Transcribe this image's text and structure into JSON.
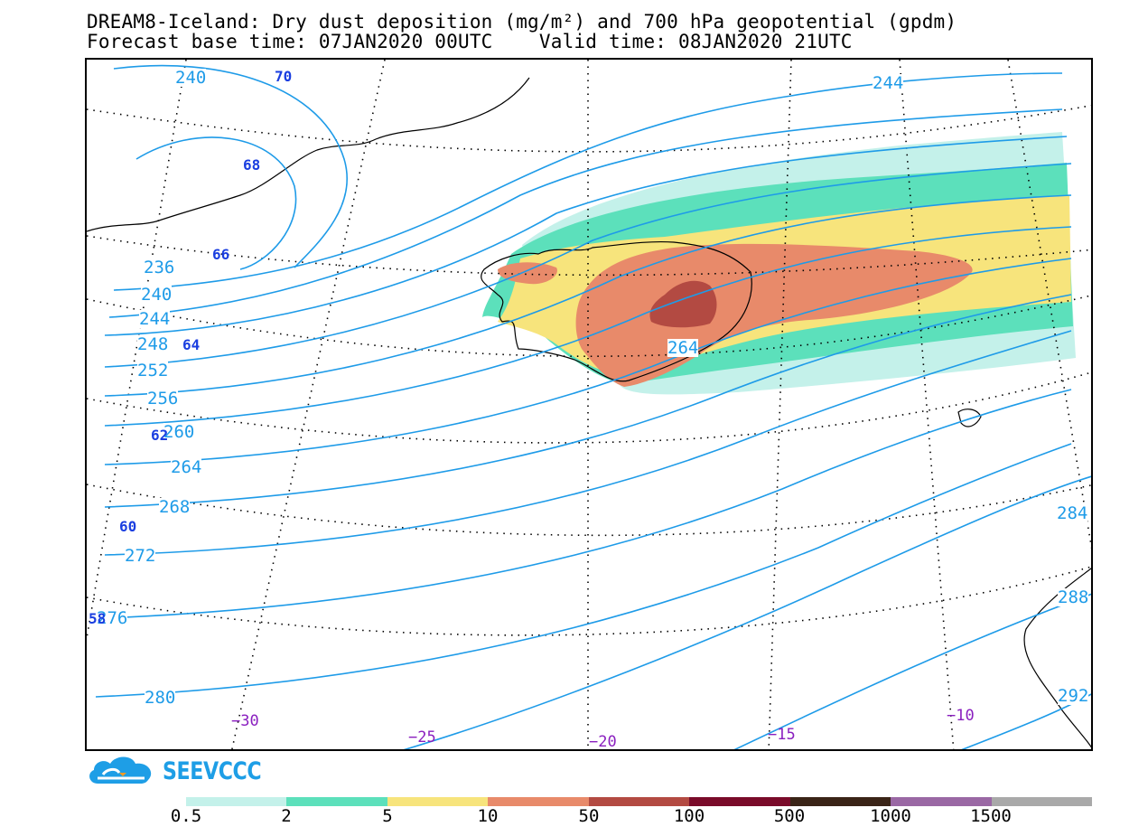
{
  "header": {
    "title_line1": "DREAM8-Iceland: Dry dust deposition (mg/m²) and 700 hPa geopotential (gpdm)",
    "title_line2": "Forecast base time: 07JAN2020 00UTC    Valid time: 08JAN2020 21UTC"
  },
  "contour_labels": [
    "240",
    "244",
    "236",
    "240",
    "244",
    "248",
    "252",
    "256",
    "260",
    "264",
    "268",
    "272",
    "276",
    "280",
    "264",
    "284",
    "288",
    "292"
  ],
  "latitude_labels": [
    "70",
    "68",
    "66",
    "64",
    "62",
    "60",
    "58"
  ],
  "longitude_labels": [
    "−30",
    "−25",
    "−20",
    "−15",
    "−10"
  ],
  "colors": {
    "contour": "#1e9be8",
    "lat_label": "#1a3ee0",
    "lon_label": "#8a1fbf",
    "coast": "#000000"
  },
  "legend": {
    "labels": [
      "0.5",
      "2",
      "5",
      "10",
      "50",
      "100",
      "500",
      "1000",
      "1500"
    ],
    "colors": [
      "#c4f1ea",
      "#5ce0bb",
      "#f7e47c",
      "#e88a6a",
      "#b34a42",
      "#7a0b2a",
      "#3a2417",
      "#9a68a4",
      "#a9a9a9"
    ]
  },
  "logo": {
    "text": "SEEVCCC"
  }
}
